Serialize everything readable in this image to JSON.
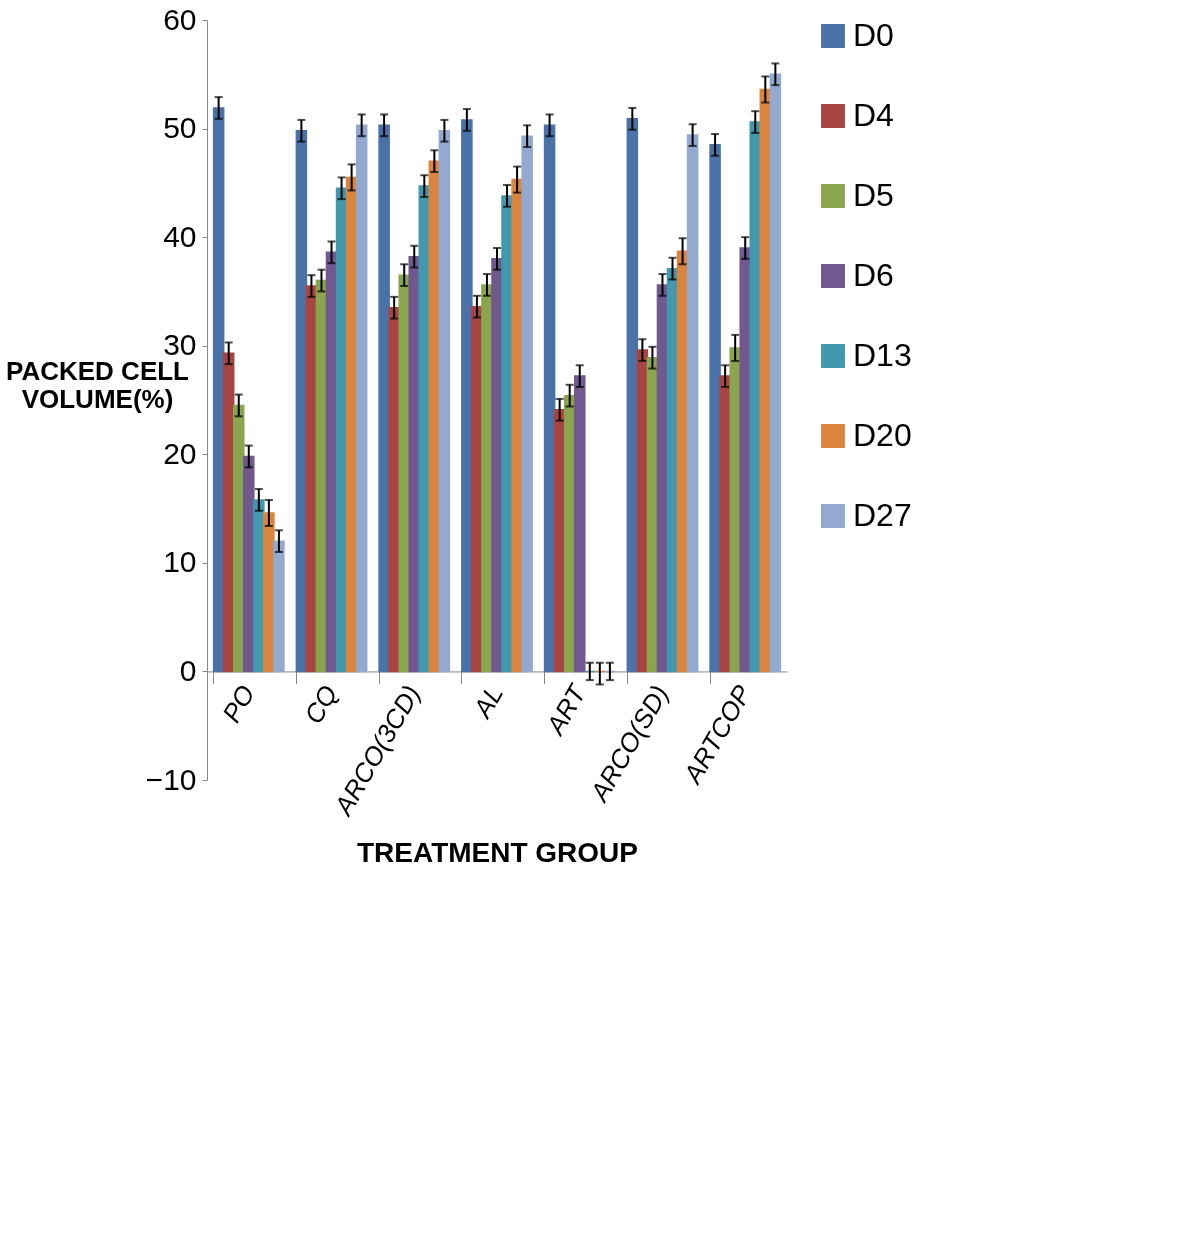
{
  "chart_data": {
    "type": "bar",
    "xlabel": "TREATMENT GROUP",
    "ylabel": "PACKED CELL VOLUME(%)",
    "categories": [
      "PO",
      "CQ",
      "ARCO(3CD)",
      "AL",
      "ART",
      "ARCO(SD)",
      "ARTCOP"
    ],
    "series": [
      {
        "name": "D0",
        "color": "#4a72a8",
        "values": [
          51.9,
          49.8,
          50.3,
          50.8,
          50.3,
          50.9,
          48.5
        ],
        "errors": [
          1,
          1,
          1,
          1,
          1,
          1,
          1
        ]
      },
      {
        "name": "D4",
        "color": "#a84542",
        "values": [
          29.3,
          35.5,
          33.5,
          33.6,
          24.1,
          29.6,
          27.2
        ],
        "errors": [
          1,
          1,
          1,
          1,
          1,
          1,
          1
        ]
      },
      {
        "name": "D5",
        "color": "#89a54e",
        "values": [
          24.5,
          36,
          36.5,
          35.6,
          25.4,
          28.9,
          29.8
        ],
        "errors": [
          1,
          1,
          1,
          1,
          1,
          1,
          1.2
        ]
      },
      {
        "name": "D6",
        "color": "#71588f",
        "values": [
          19.8,
          38.6,
          38.2,
          38,
          27.2,
          35.6,
          39
        ],
        "errors": [
          1,
          1,
          1,
          1,
          1,
          1,
          1
        ]
      },
      {
        "name": "D13",
        "color": "#4198af",
        "values": [
          15.8,
          44.5,
          44.7,
          43.8,
          0,
          37.1,
          50.6
        ],
        "errors": [
          1,
          1,
          1,
          1,
          0.8,
          1,
          1
        ]
      },
      {
        "name": "D20",
        "color": "#db843d",
        "values": [
          14.6,
          45.5,
          47,
          45.3,
          0,
          38.7,
          53.6
        ],
        "errors": [
          1.2,
          1.2,
          1,
          1.2,
          [
            -1.2,
            0.8
          ],
          1.2,
          1.2
        ]
      },
      {
        "name": "D27",
        "color": "#93a9cf",
        "values": [
          12,
          50.3,
          49.8,
          49.3,
          0,
          49.4,
          55
        ],
        "errors": [
          1,
          1,
          1,
          1,
          0.8,
          1,
          1
        ]
      }
    ],
    "ylim": [
      -10,
      60
    ],
    "yticks": [
      -10,
      0,
      10,
      20,
      30,
      40,
      50,
      60
    ],
    "grid": false,
    "legend": "right"
  }
}
